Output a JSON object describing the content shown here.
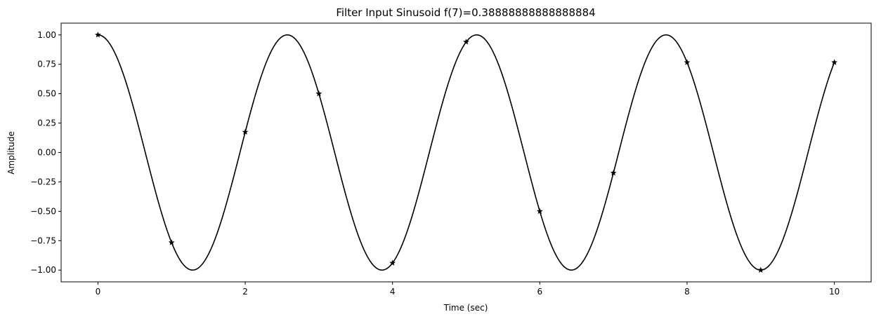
{
  "chart_data": {
    "type": "line",
    "title": "Filter Input Sinusoid f(7)=0.38888888888888884",
    "xlabel": "Time (sec)",
    "ylabel": "Amplitude",
    "xlim": [
      -0.5,
      10.5
    ],
    "ylim": [
      -1.1,
      1.1
    ],
    "grid": false,
    "legend": "none",
    "color": "#000000",
    "x_ticks": [
      0,
      2,
      4,
      6,
      8,
      10
    ],
    "x_tick_labels": [
      "0",
      "2",
      "4",
      "6",
      "8",
      "10"
    ],
    "y_ticks": [
      1.0,
      0.75,
      0.5,
      0.25,
      0.0,
      -0.25,
      -0.5,
      -0.75,
      -1.0
    ],
    "y_tick_labels": [
      "1.00",
      "0.75",
      "0.50",
      "0.25",
      "0.00",
      "−0.25",
      "−0.50",
      "−0.75",
      "−1.00"
    ],
    "continuous_series": {
      "function": "cos",
      "frequency_hz": 0.38888888888888884,
      "x_range": [
        0,
        10
      ]
    },
    "sample_series": {
      "marker": "star",
      "x": [
        0,
        1,
        2,
        3,
        4,
        5,
        6,
        7,
        8,
        9,
        10
      ],
      "y": [
        1.0,
        -0.766,
        0.174,
        0.5,
        -0.94,
        0.94,
        -0.5,
        -0.174,
        0.766,
        -1.0,
        0.766
      ]
    }
  }
}
